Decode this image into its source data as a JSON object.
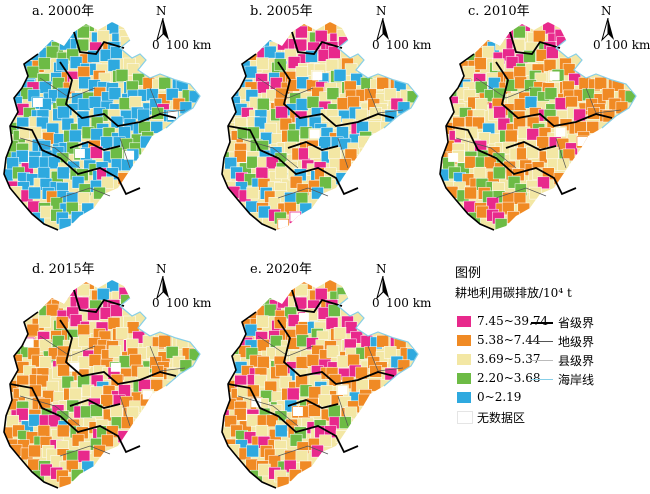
{
  "panels": [
    {
      "label": "a. 2000年",
      "weights": [
        0.06,
        0.06,
        0.08,
        0.22,
        0.58
      ]
    },
    {
      "label": "b. 2005年",
      "weights": [
        0.1,
        0.22,
        0.34,
        0.16,
        0.18
      ]
    },
    {
      "label": "c. 2010年",
      "weights": [
        0.14,
        0.38,
        0.22,
        0.22,
        0.04
      ]
    },
    {
      "label": "d. 2015年",
      "weights": [
        0.14,
        0.42,
        0.26,
        0.14,
        0.04
      ]
    },
    {
      "label": "e. 2020年",
      "weights": [
        0.14,
        0.42,
        0.28,
        0.12,
        0.04
      ]
    }
  ],
  "north_arrow": {
    "letter": "N"
  },
  "scale_bar": {
    "start": "0",
    "end": "100 km"
  },
  "legend": {
    "title": "图例",
    "subtitle": "耕地利用碳排放/10⁴ t",
    "classes": [
      {
        "label": "7.45~39.74",
        "color": "#e8298c"
      },
      {
        "label": "5.38~7.44",
        "color": "#f08a24"
      },
      {
        "label": "3.69~5.37",
        "color": "#f3e7a4"
      },
      {
        "label": "2.20~3.68",
        "color": "#6dbb45"
      },
      {
        "label": "0~2.19",
        "color": "#2ea9df"
      },
      {
        "label": "无数据区",
        "color": "#ffffff"
      }
    ],
    "lines": [
      {
        "label": "省级界",
        "color": "#000000",
        "width": 2.2
      },
      {
        "label": "地级界",
        "color": "#555555",
        "width": 1
      },
      {
        "label": "县级界",
        "color": "#bbbbbb",
        "width": 0.6
      },
      {
        "label": "海岸线",
        "color": "#87cfe8",
        "width": 1
      }
    ]
  }
}
